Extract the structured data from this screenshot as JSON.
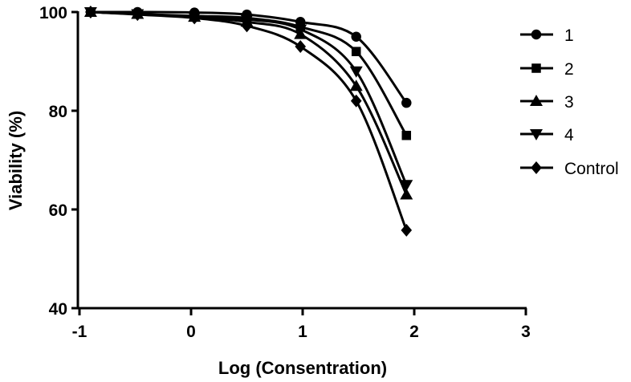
{
  "chart_data": {
    "type": "line",
    "title": "",
    "xlabel": "Log (Consentration)",
    "ylabel": "Viability (%)",
    "xlim": [
      -1,
      3
    ],
    "ylim": [
      40,
      100
    ],
    "x_ticks": [
      "-1",
      "0",
      "1",
      "2",
      "3"
    ],
    "y_ticks": [
      "40",
      "60",
      "80",
      "100"
    ],
    "grid": false,
    "legend_position": "right",
    "x": [
      -0.9,
      -0.48,
      0.03,
      0.5,
      0.98,
      1.48,
      1.93
    ],
    "series": [
      {
        "name": "1",
        "marker": "circle",
        "values": [
          100,
          100,
          99.9,
          99.5,
          98.0,
          95.0,
          81.6
        ]
      },
      {
        "name": "2",
        "marker": "square",
        "values": [
          100,
          99.6,
          99.2,
          98.8,
          97.0,
          92.0,
          75.0
        ]
      },
      {
        "name": "3",
        "marker": "triangle-up",
        "values": [
          100,
          99.6,
          99.0,
          98.0,
          95.5,
          85.0,
          63.0
        ]
      },
      {
        "name": "4",
        "marker": "triangle-down",
        "values": [
          100,
          99.6,
          99.0,
          98.5,
          96.5,
          88.0,
          65.0
        ]
      },
      {
        "name": "Control",
        "marker": "diamond",
        "values": [
          100,
          99.5,
          98.8,
          97.2,
          93.0,
          82.0,
          55.8
        ]
      }
    ]
  },
  "axes": {
    "xlabel": "Log (Consentration)",
    "ylabel": "Viability (%)",
    "x_ticks": [
      "-1",
      "0",
      "1",
      "2",
      "3"
    ],
    "y_ticks": [
      "100",
      "80",
      "60",
      "40"
    ]
  },
  "legend": {
    "items": [
      "1",
      "2",
      "3",
      "4",
      "Control"
    ]
  }
}
